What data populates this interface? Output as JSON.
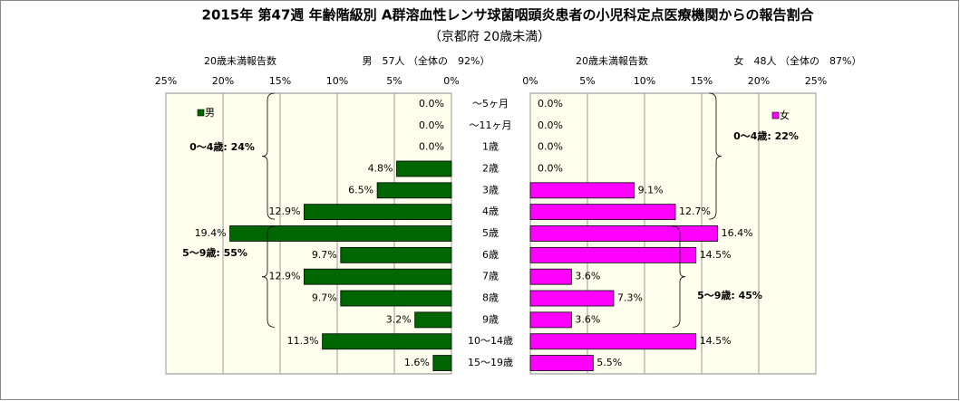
{
  "chart_data": {
    "type": "butterfly-bar",
    "title": "2015年 第47週 年齢階級別 A群溶血性レンサ球菌咽頭炎患者の小児科定点医療機関からの報告割合",
    "subtitle": "（京都府 20歳未満）",
    "categories": [
      "～5ヶ月",
      "～11ヶ月",
      "1歳",
      "2歳",
      "3歳",
      "4歳",
      "5歳",
      "6歳",
      "7歳",
      "8歳",
      "9歳",
      "10～14歳",
      "15～19歳"
    ],
    "series": [
      {
        "name": "男",
        "color": "#006600",
        "side": "left",
        "axis_title": "20歳未満報告数",
        "header": "男　57人 （全体の　92%）",
        "values": [
          0,
          0,
          0,
          4.8,
          6.5,
          12.9,
          19.4,
          9.7,
          12.9,
          9.7,
          3.2,
          11.3,
          1.6
        ],
        "value_labels": [
          "0.0%",
          "0.0%",
          "0.0%",
          "4.8%",
          "6.5%",
          "12.9%",
          "19.4%",
          "9.7%",
          "12.9%",
          "9.7%",
          "3.2%",
          "11.3%",
          "1.6%"
        ],
        "xlim": [
          0,
          25
        ],
        "xticks": [
          {
            "value": 25,
            "label": "25%"
          },
          {
            "value": 20,
            "label": "20%"
          },
          {
            "value": 15,
            "label": "15%"
          },
          {
            "value": 10,
            "label": "10%"
          },
          {
            "value": 5,
            "label": "5%"
          },
          {
            "value": 0,
            "label": "0%"
          }
        ]
      },
      {
        "name": "女",
        "color": "#ff00ff",
        "side": "right",
        "axis_title": "20歳未満報告数",
        "header": "女　48人 （全体の　87%）",
        "values": [
          0,
          0,
          0,
          0,
          9.1,
          12.7,
          16.4,
          14.5,
          3.6,
          7.3,
          3.6,
          14.5,
          5.5
        ],
        "value_labels": [
          "0.0%",
          "0.0%",
          "0.0%",
          "0.0%",
          "9.1%",
          "12.7%",
          "16.4%",
          "14.5%",
          "3.6%",
          "7.3%",
          "3.6%",
          "14.5%",
          "5.5%"
        ],
        "xlim": [
          0,
          25
        ],
        "xticks": [
          {
            "value": 0,
            "label": "0%"
          },
          {
            "value": 5,
            "label": "5%"
          },
          {
            "value": 10,
            "label": "10%"
          },
          {
            "value": 15,
            "label": "15%"
          },
          {
            "value": 20,
            "label": "20%"
          },
          {
            "value": 25,
            "label": "25%"
          }
        ]
      }
    ],
    "annotations": [
      "0～4歳: 24%",
      "5～9歳: 55%",
      "0～4歳: 22%",
      "5～9歳: 45%"
    ],
    "grid": true
  }
}
